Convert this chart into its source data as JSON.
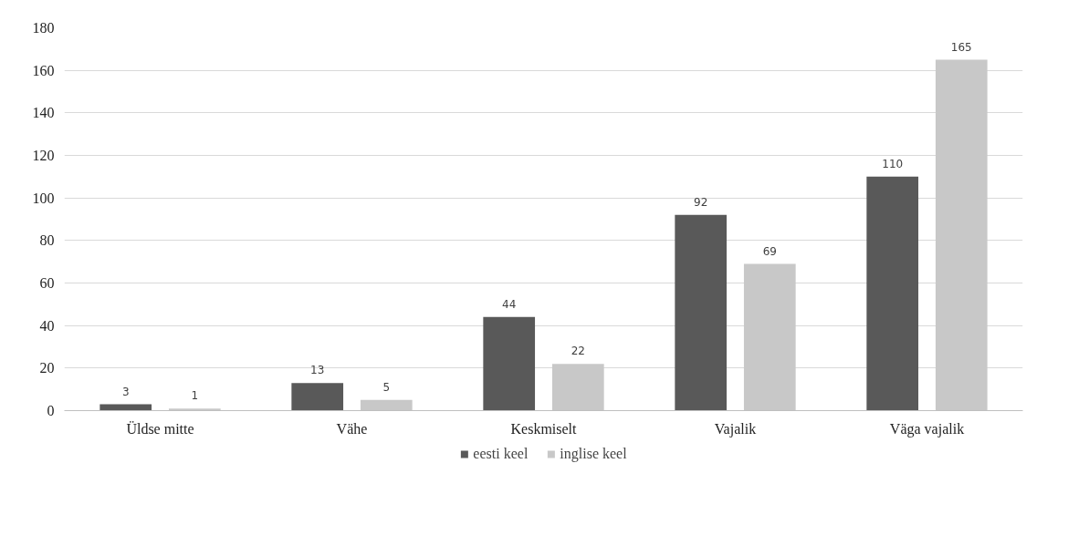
{
  "chart_data": {
    "type": "bar",
    "categories": [
      "Üldse mitte",
      "Vähe",
      "Keskmiselt",
      "Vajalik",
      "Väga vajalik"
    ],
    "series": [
      {
        "name": "eesti keel",
        "color": "#595959",
        "values": [
          3,
          13,
          44,
          92,
          110
        ]
      },
      {
        "name": "inglise keel",
        "color": "#c8c8c8",
        "values": [
          1,
          5,
          22,
          69,
          165
        ]
      }
    ],
    "ylim": [
      0,
      180
    ],
    "yticks": [
      0,
      20,
      40,
      60,
      80,
      100,
      120,
      140,
      160,
      180
    ],
    "grid": "y",
    "legend": "bottom",
    "data_labels": true
  }
}
